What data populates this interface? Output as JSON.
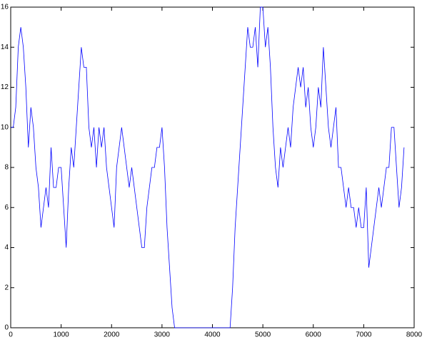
{
  "chart_data": {
    "type": "line",
    "x": [
      0,
      50,
      100,
      150,
      200,
      250,
      300,
      350,
      400,
      450,
      500,
      550,
      600,
      650,
      700,
      750,
      800,
      850,
      900,
      950,
      1000,
      1050,
      1100,
      1150,
      1200,
      1250,
      1300,
      1350,
      1400,
      1450,
      1500,
      1550,
      1600,
      1650,
      1700,
      1750,
      1800,
      1850,
      1900,
      1950,
      2000,
      2050,
      2100,
      2150,
      2200,
      2250,
      2300,
      2350,
      2400,
      2450,
      2500,
      2550,
      2600,
      2650,
      2700,
      2750,
      2800,
      2850,
      2900,
      2950,
      3000,
      3050,
      3100,
      3150,
      3200,
      3250,
      3300,
      3500,
      4000,
      4300,
      4350,
      4400,
      4450,
      4500,
      4550,
      4600,
      4650,
      4700,
      4750,
      4800,
      4850,
      4900,
      4950,
      5000,
      5050,
      5100,
      5150,
      5200,
      5250,
      5300,
      5350,
      5400,
      5450,
      5500,
      5550,
      5600,
      5650,
      5700,
      5750,
      5800,
      5850,
      5900,
      5950,
      6000,
      6050,
      6100,
      6150,
      6200,
      6250,
      6300,
      6350,
      6400,
      6450,
      6500,
      6550,
      6600,
      6650,
      6700,
      6750,
      6800,
      6850,
      6900,
      6950,
      7000,
      7050,
      7100,
      7150,
      7200,
      7250,
      7300,
      7350,
      7400,
      7450,
      7500,
      7550,
      7600,
      7650,
      7700,
      7750,
      7800
    ],
    "series": [
      {
        "color": "#0000ff",
        "values": [
          10,
          10,
          11,
          14,
          15,
          14,
          12,
          9,
          11,
          10,
          8,
          7,
          5,
          6,
          7,
          6,
          9,
          7,
          7,
          8,
          8,
          6,
          4,
          7,
          9,
          8,
          10,
          12,
          14,
          13,
          13,
          10,
          9,
          10,
          8,
          10,
          9,
          10,
          8,
          7,
          6,
          5,
          8,
          9,
          10,
          9,
          8,
          7,
          8,
          7,
          6,
          5,
          4,
          4,
          6,
          7,
          8,
          8,
          9,
          9,
          10,
          8,
          5,
          3,
          1,
          0,
          0,
          0,
          0,
          0,
          0,
          2,
          5,
          7,
          9,
          11,
          13,
          15,
          14,
          14,
          15,
          13,
          16,
          16,
          14,
          15,
          13,
          10,
          8,
          7,
          9,
          8,
          9,
          10,
          9,
          11,
          12,
          13,
          12,
          13,
          11,
          12,
          10,
          9,
          10,
          12,
          11,
          14,
          12,
          10,
          9,
          10,
          11,
          8,
          8,
          7,
          6,
          7,
          6,
          6,
          5,
          6,
          5,
          5,
          7,
          3,
          4,
          5,
          6,
          7,
          6,
          7,
          8,
          8,
          10,
          10,
          8,
          6,
          7,
          9
        ]
      }
    ],
    "xlim": [
      0,
      8000
    ],
    "xticks": [
      0,
      1000,
      2000,
      3000,
      4000,
      5000,
      6000,
      7000,
      8000
    ],
    "ylim": [
      0,
      16
    ],
    "yticks": [
      0,
      2,
      4,
      6,
      8,
      10,
      12,
      14,
      16
    ]
  }
}
